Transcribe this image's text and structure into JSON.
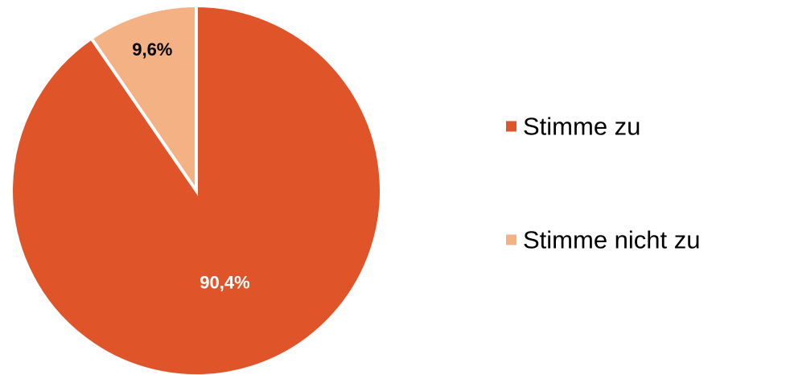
{
  "chart_data": {
    "type": "pie",
    "title": "",
    "slices": [
      {
        "label": "Stimme zu",
        "value": 90.4,
        "display": "90,4%",
        "color": "#E0542A",
        "label_color": "#FFFFFF"
      },
      {
        "label": "Stimme nicht zu",
        "value": 9.6,
        "display": "9,6%",
        "color": "#F4B183",
        "label_color": "#000000"
      }
    ],
    "start_angle": "12 o'clock",
    "direction": "clockwise",
    "legend": {
      "placement": "right",
      "entries": [
        "Stimme zu",
        "Stimme nicht zu"
      ]
    }
  }
}
